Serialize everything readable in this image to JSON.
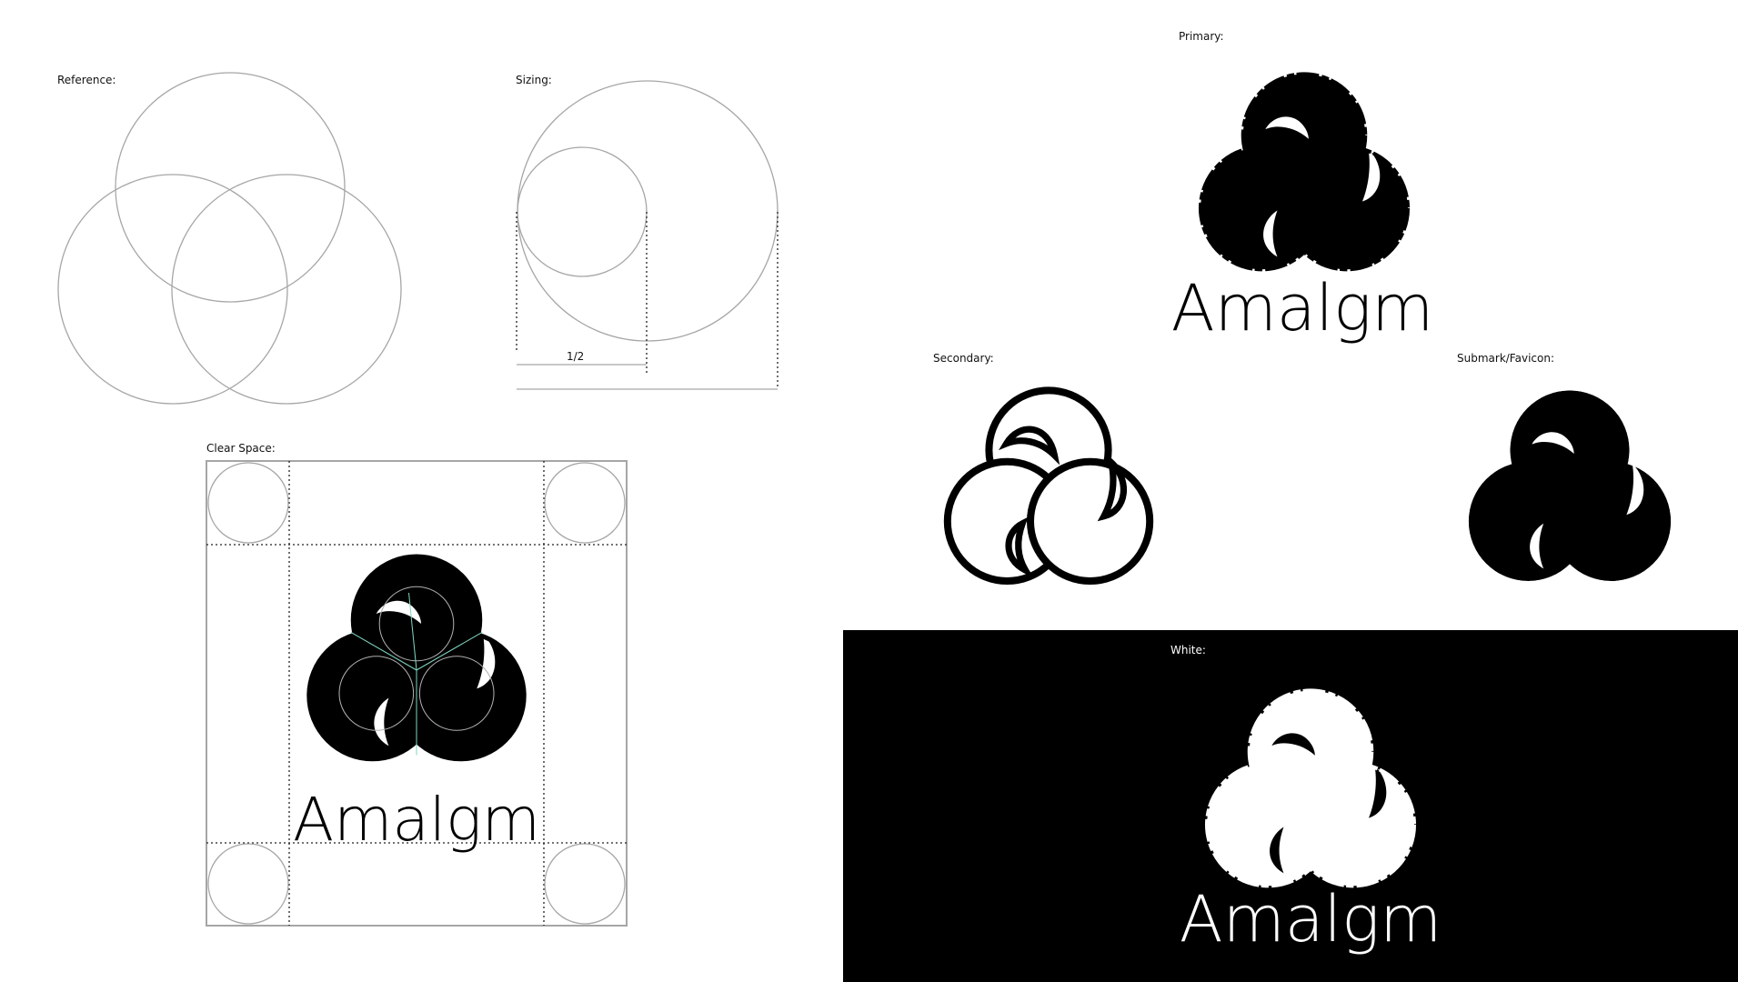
{
  "labels": {
    "reference": "Reference:",
    "sizing": "Sizing:",
    "half": "1/2",
    "clear_space": "Clear Space:",
    "primary": "Primary:",
    "secondary": "Secondary:",
    "submark": "Submark/Favicon:",
    "white": "White:"
  },
  "wordmark": "Amalgm",
  "colors": {
    "background": "#ffffff",
    "ink": "#000000",
    "guide": "#a6a6a6",
    "accent_guide": "#7fd6c2",
    "dark_panel": "#000000"
  }
}
